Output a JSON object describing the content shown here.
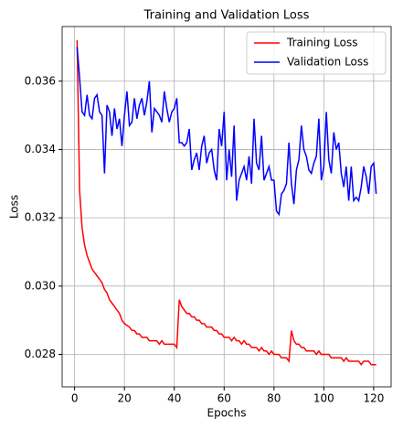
{
  "chart_data": {
    "type": "line",
    "title": "Training and Validation Loss",
    "x_label": "Epochs",
    "y_label": "Loss",
    "x": [
      1,
      2,
      3,
      4,
      5,
      6,
      7,
      8,
      9,
      10,
      11,
      12,
      13,
      14,
      15,
      16,
      17,
      18,
      19,
      20,
      21,
      22,
      23,
      24,
      25,
      26,
      27,
      28,
      29,
      30,
      31,
      32,
      33,
      34,
      35,
      36,
      37,
      38,
      39,
      40,
      41,
      42,
      43,
      44,
      45,
      46,
      47,
      48,
      49,
      50,
      51,
      52,
      53,
      54,
      55,
      56,
      57,
      58,
      59,
      60,
      61,
      62,
      63,
      64,
      65,
      66,
      67,
      68,
      69,
      70,
      71,
      72,
      73,
      74,
      75,
      76,
      77,
      78,
      79,
      80,
      81,
      82,
      83,
      84,
      85,
      86,
      87,
      88,
      89,
      90,
      91,
      92,
      93,
      94,
      95,
      96,
      97,
      98,
      99,
      100,
      101,
      102,
      103,
      104,
      105,
      106,
      107,
      108,
      109,
      110,
      111,
      112,
      113,
      114,
      115,
      116,
      117,
      118,
      119,
      120,
      121
    ],
    "series": [
      {
        "name": "Training Loss",
        "color": "#ff0000",
        "values": [
          0.0372,
          0.0328,
          0.0317,
          0.0312,
          0.0309,
          0.0307,
          0.0305,
          0.0304,
          0.0303,
          0.0302,
          0.0301,
          0.0299,
          0.0298,
          0.0296,
          0.0295,
          0.0294,
          0.0293,
          0.0292,
          0.029,
          0.0289,
          0.02885,
          0.0288,
          0.0287,
          0.0287,
          0.0286,
          0.0286,
          0.0285,
          0.0285,
          0.0285,
          0.0284,
          0.0284,
          0.0284,
          0.0284,
          0.0283,
          0.0284,
          0.0283,
          0.0283,
          0.0283,
          0.0283,
          0.0283,
          0.0282,
          0.0296,
          0.0294,
          0.0293,
          0.0292,
          0.0292,
          0.0291,
          0.0291,
          0.029,
          0.029,
          0.0289,
          0.0289,
          0.0288,
          0.0288,
          0.0288,
          0.0287,
          0.0287,
          0.0286,
          0.0286,
          0.0285,
          0.0285,
          0.0285,
          0.0284,
          0.0285,
          0.0284,
          0.0284,
          0.0283,
          0.0284,
          0.0283,
          0.0283,
          0.0282,
          0.0282,
          0.0282,
          0.0281,
          0.0282,
          0.0281,
          0.0281,
          0.028,
          0.0281,
          0.028,
          0.028,
          0.028,
          0.0279,
          0.0279,
          0.0279,
          0.0278,
          0.0287,
          0.0284,
          0.0283,
          0.0283,
          0.0282,
          0.0282,
          0.0281,
          0.0281,
          0.0281,
          0.0281,
          0.028,
          0.0281,
          0.028,
          0.028,
          0.028,
          0.028,
          0.0279,
          0.0279,
          0.0279,
          0.0279,
          0.0279,
          0.0278,
          0.0279,
          0.0278,
          0.0278,
          0.0278,
          0.0278,
          0.0278,
          0.0277,
          0.0278,
          0.0278,
          0.0278,
          0.0277,
          0.0277,
          0.0277
        ]
      },
      {
        "name": "Validation Loss",
        "color": "#0000ff",
        "values": [
          0.037,
          0.0361,
          0.0351,
          0.035,
          0.0356,
          0.035,
          0.0349,
          0.0355,
          0.0356,
          0.0351,
          0.035,
          0.0333,
          0.0353,
          0.0351,
          0.0344,
          0.0352,
          0.0346,
          0.0349,
          0.0341,
          0.035,
          0.0357,
          0.0347,
          0.0348,
          0.0355,
          0.0349,
          0.0353,
          0.0355,
          0.035,
          0.0354,
          0.036,
          0.0345,
          0.0352,
          0.0351,
          0.035,
          0.0348,
          0.0357,
          0.0352,
          0.0348,
          0.0351,
          0.0352,
          0.0355,
          0.0342,
          0.0342,
          0.0341,
          0.0342,
          0.0346,
          0.0334,
          0.0337,
          0.0339,
          0.0334,
          0.0341,
          0.0344,
          0.0336,
          0.0339,
          0.034,
          0.0334,
          0.0331,
          0.0346,
          0.0341,
          0.0351,
          0.0331,
          0.034,
          0.0332,
          0.0347,
          0.0325,
          0.0331,
          0.0333,
          0.0335,
          0.0331,
          0.0338,
          0.033,
          0.0349,
          0.0336,
          0.0334,
          0.0344,
          0.0331,
          0.0333,
          0.0335,
          0.0331,
          0.0331,
          0.0322,
          0.0321,
          0.0327,
          0.0328,
          0.033,
          0.0342,
          0.033,
          0.0324,
          0.0334,
          0.0337,
          0.0347,
          0.034,
          0.0338,
          0.0334,
          0.0333,
          0.0336,
          0.0338,
          0.0349,
          0.0331,
          0.0335,
          0.0351,
          0.0337,
          0.0333,
          0.0345,
          0.034,
          0.0342,
          0.0333,
          0.0329,
          0.0335,
          0.0325,
          0.0335,
          0.0325,
          0.0326,
          0.0325,
          0.0329,
          0.0335,
          0.0332,
          0.0327,
          0.0335,
          0.0336,
          0.0327
        ]
      }
    ],
    "xlim": [
      -5,
      127
    ],
    "xticks": [
      0,
      20,
      40,
      60,
      80,
      100,
      120
    ],
    "ylim": [
      0.02705,
      0.0376
    ],
    "yticks": [
      0.028,
      {
        "value": 0.03,
        "label": "0.030"
      },
      0.032,
      0.034,
      0.036
    ],
    "grid": true,
    "legend": "upper right"
  }
}
